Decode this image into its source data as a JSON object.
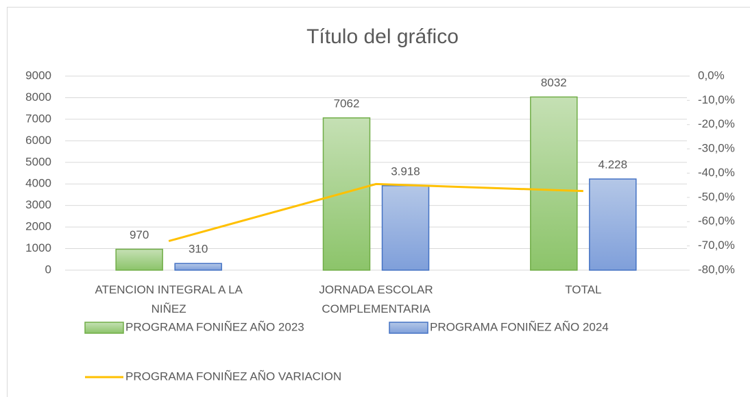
{
  "chart_data": {
    "type": "bar_line",
    "title": "Título del gráfico",
    "categories": [
      "ATENCION INTEGRAL A LA NIÑEZ",
      "JORNADA ESCOLAR COMPLEMENTARIA",
      "TOTAL"
    ],
    "series": [
      {
        "name": "PROGRAMA FONIÑEZ AÑO 2023",
        "type": "bar",
        "color": "#a9d18e",
        "stroke": "#70ad47",
        "values": [
          970,
          7062,
          8032
        ]
      },
      {
        "name": "PROGRAMA FONIÑEZ AÑO 2024",
        "type": "bar",
        "color": "#8faadc",
        "stroke": "#4472c4",
        "values": [
          310,
          3918,
          4228
        ],
        "value_labels": [
          "310",
          "3.918",
          "4.228"
        ]
      },
      {
        "name": "PROGRAMA FONIÑEZ AÑO VARIACION",
        "type": "line",
        "axis": "y2",
        "color": "#ffc000",
        "values": [
          -68.0,
          -44.5,
          -47.4
        ]
      }
    ],
    "ylim": [
      0,
      9000
    ],
    "yticks": [
      0,
      1000,
      2000,
      3000,
      4000,
      5000,
      6000,
      7000,
      8000,
      9000
    ],
    "y2lim": [
      -80,
      0
    ],
    "y2ticks": [
      {
        "value": 0,
        "label": "0,0%"
      },
      {
        "value": -10,
        "label": "-10,0%"
      },
      {
        "value": -20,
        "label": "-20,0%"
      },
      {
        "value": -30,
        "label": "-30,0%"
      },
      {
        "value": -40,
        "label": "-40,0%"
      },
      {
        "value": -50,
        "label": "-50,0%"
      },
      {
        "value": -60,
        "label": "-60,0%"
      },
      {
        "value": -70,
        "label": "-70,0%"
      },
      {
        "value": -80,
        "label": "-80,0%"
      }
    ],
    "grid": true,
    "legend": "bottom"
  }
}
